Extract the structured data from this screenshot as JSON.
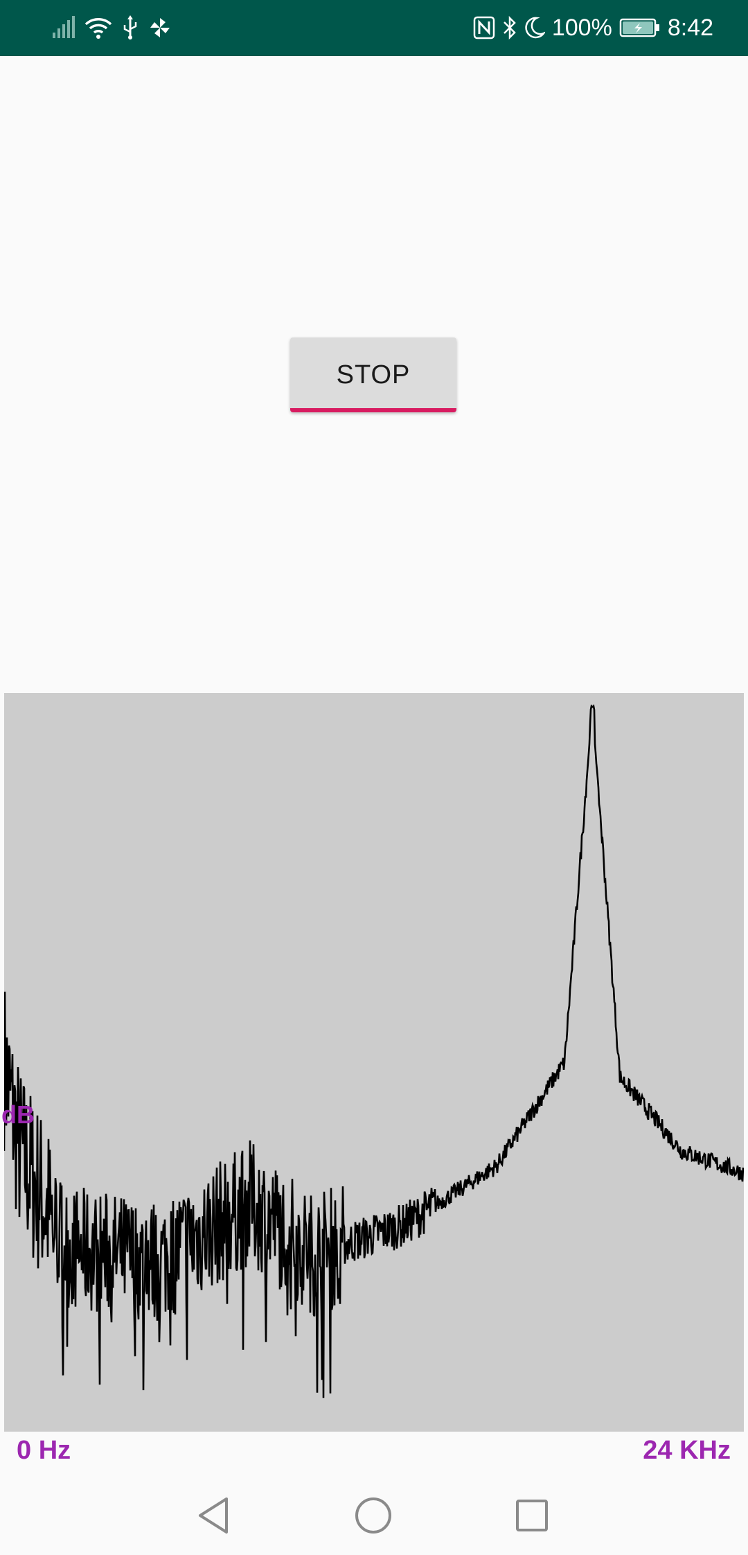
{
  "status_bar": {
    "battery_percent": "100%",
    "time": "8:42",
    "left_icons": [
      "signal-icon",
      "wifi-icon",
      "usb-icon",
      "pinwheel-icon"
    ],
    "right_icons": [
      "nfc-icon",
      "bluetooth-icon",
      "moon-icon",
      "battery-icon"
    ],
    "background": "#00574b"
  },
  "controls": {
    "stop_label": "STOP",
    "accent": "#d81b60"
  },
  "chart_data": {
    "type": "line",
    "ylabel": "dB",
    "x_min_label": "0 Hz",
    "x_max_label": "24 KHz",
    "xlim": [
      0,
      24000
    ],
    "ylim": [
      0,
      1
    ],
    "background": "#cccccc",
    "line_color": "#000000",
    "label_color": "#9c27b0",
    "grid": false,
    "peak_frequency_hz": 19100,
    "peak_level": 0.98,
    "description_points": [
      {
        "x": 0,
        "y": 0.5
      },
      {
        "x": 500,
        "y": 0.38
      },
      {
        "x": 2000,
        "y": 0.25
      },
      {
        "x": 5000,
        "y": 0.23
      },
      {
        "x": 8000,
        "y": 0.31
      },
      {
        "x": 10000,
        "y": 0.24
      },
      {
        "x": 13000,
        "y": 0.28
      },
      {
        "x": 16000,
        "y": 0.36
      },
      {
        "x": 18200,
        "y": 0.5
      },
      {
        "x": 19100,
        "y": 0.98
      },
      {
        "x": 20000,
        "y": 0.48
      },
      {
        "x": 22000,
        "y": 0.38
      },
      {
        "x": 24000,
        "y": 0.35
      }
    ]
  },
  "nav_bar": {
    "buttons": [
      "back-icon",
      "home-icon",
      "recents-icon"
    ]
  }
}
